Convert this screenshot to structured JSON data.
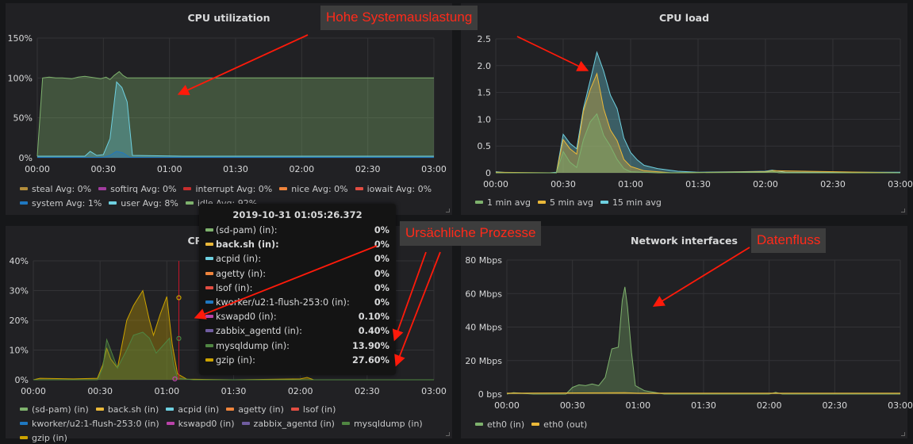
{
  "panels": {
    "cpu_util": {
      "title": "CPU utilization",
      "legend": [
        {
          "label": "steal",
          "avg": "Avg: 0%",
          "color": "#b38d3b"
        },
        {
          "label": "softirq",
          "avg": "Avg: 0%",
          "color": "#a13c9e"
        },
        {
          "label": "interrupt",
          "avg": "Avg: 0%",
          "color": "#c72e2e"
        },
        {
          "label": "nice",
          "avg": "Avg: 0%",
          "color": "#ef843c"
        },
        {
          "label": "iowait",
          "avg": "Avg: 0%",
          "color": "#e24d42"
        },
        {
          "label": "system",
          "avg": "Avg: 1%",
          "color": "#1f78c1"
        },
        {
          "label": "user",
          "avg": "Avg: 8%",
          "color": "#6ed0e0"
        },
        {
          "label": "idle",
          "avg": "Avg: 92%",
          "color": "#7eb26d"
        }
      ]
    },
    "cpu_load": {
      "title": "CPU load",
      "legend": [
        {
          "label": "1 min avg",
          "color": "#7eb26d"
        },
        {
          "label": "5 min avg",
          "color": "#eab839"
        },
        {
          "label": "15 min avg",
          "color": "#6ed0e0"
        }
      ]
    },
    "cpu_proc": {
      "title": "CPU utilization",
      "legend": [
        {
          "label": "(sd-pam) (in)",
          "color": "#7eb26d"
        },
        {
          "label": "back.sh (in)",
          "color": "#eab839"
        },
        {
          "label": "acpid (in)",
          "color": "#6ed0e0"
        },
        {
          "label": "agetty (in)",
          "color": "#ef843c"
        },
        {
          "label": "lsof (in)",
          "color": "#e24d42"
        },
        {
          "label": "kworker/u2:1-flush-253:0 (in)",
          "color": "#1f78c1"
        },
        {
          "label": "kswapd0 (in)",
          "color": "#ba43a9"
        },
        {
          "label": "zabbix_agentd (in)",
          "color": "#705da0"
        },
        {
          "label": "mysqldump (in)",
          "color": "#508642"
        },
        {
          "label": "gzip (in)",
          "color": "#cca300"
        }
      ]
    },
    "network": {
      "title": "Network interfaces",
      "legend": [
        {
          "label": "eth0 (in)",
          "color": "#7eb26d"
        },
        {
          "label": "eth0 (out)",
          "color": "#eab839"
        }
      ]
    }
  },
  "tooltip": {
    "time": "2019-10-31 01:05:26.372",
    "rows": [
      {
        "name": "(sd-pam) (in):",
        "value": "0%",
        "color": "#7eb26d"
      },
      {
        "name": "back.sh (in):",
        "value": "0%",
        "color": "#eab839",
        "bold": true
      },
      {
        "name": "acpid (in):",
        "value": "0%",
        "color": "#6ed0e0"
      },
      {
        "name": "agetty (in):",
        "value": "0%",
        "color": "#ef843c"
      },
      {
        "name": "lsof (in):",
        "value": "0%",
        "color": "#e24d42"
      },
      {
        "name": "kworker/u2:1-flush-253:0 (in):",
        "value": "0%",
        "color": "#1f78c1"
      },
      {
        "name": "kswapd0 (in):",
        "value": "0.10%",
        "color": "#ba43a9"
      },
      {
        "name": "zabbix_agentd (in):",
        "value": "0.40%",
        "color": "#705da0"
      },
      {
        "name": "mysqldump (in):",
        "value": "13.90%",
        "color": "#508642"
      },
      {
        "name": "gzip (in):",
        "value": "27.60%",
        "color": "#cca300"
      }
    ]
  },
  "annotations": {
    "top": "Hohe Systemauslastung",
    "middle": "Ursächliche Prozesse",
    "right": "Datenfluss"
  },
  "chart_data": [
    {
      "type": "area",
      "title": "CPU utilization",
      "x": [
        "00:00",
        "00:30",
        "01:00",
        "01:30",
        "02:00",
        "02:30",
        "03:00"
      ],
      "y_ticks": [
        "0%",
        "50%",
        "100%",
        "150%"
      ],
      "ylim": [
        0,
        150
      ],
      "unit": "%",
      "series": [
        {
          "name": "idle",
          "color": "#7eb26d",
          "points": [
            [
              0,
              2
            ],
            [
              0.04,
              100
            ],
            [
              0.09,
              101
            ],
            [
              0.14,
              100
            ],
            [
              0.19,
              100
            ],
            [
              0.26,
              99
            ],
            [
              0.31,
              101
            ],
            [
              0.36,
              102
            ],
            [
              0.4,
              101
            ],
            [
              0.44,
              100
            ],
            [
              0.48,
              99
            ],
            [
              0.52,
              101
            ],
            [
              0.55,
              98
            ],
            [
              0.58,
              103
            ],
            [
              0.62,
              108
            ],
            [
              0.65,
              103
            ],
            [
              0.68,
              100
            ],
            [
              0.72,
              100
            ],
            [
              1.5,
              100
            ],
            [
              2.2,
              100
            ],
            [
              3,
              100
            ]
          ]
        },
        {
          "name": "user",
          "color": "#6ed0e0",
          "points": [
            [
              0,
              2
            ],
            [
              0.3,
              2
            ],
            [
              0.36,
              2
            ],
            [
              0.4,
              8
            ],
            [
              0.45,
              3
            ],
            [
              0.5,
              4
            ],
            [
              0.55,
              24
            ],
            [
              0.6,
              95
            ],
            [
              0.64,
              88
            ],
            [
              0.68,
              70
            ],
            [
              0.72,
              3
            ],
            [
              1.1,
              2
            ],
            [
              3,
              2
            ]
          ]
        },
        {
          "name": "system",
          "color": "#1f78c1",
          "points": [
            [
              0,
              0.5
            ],
            [
              0.5,
              0.5
            ],
            [
              0.55,
              3
            ],
            [
              0.6,
              8
            ],
            [
              0.65,
              6
            ],
            [
              0.7,
              0.5
            ],
            [
              3,
              0.5
            ]
          ]
        }
      ]
    },
    {
      "type": "area",
      "title": "CPU load",
      "x": [
        "00:00",
        "00:30",
        "01:00",
        "01:30",
        "02:00",
        "02:30",
        "03:00"
      ],
      "y_ticks": [
        "0",
        "0.5",
        "1.0",
        "1.5",
        "2.0",
        "2.5"
      ],
      "ylim": [
        0,
        2.5
      ],
      "series": [
        {
          "name": "15 min avg",
          "color": "#6ed0e0",
          "points": [
            [
              0,
              0.02
            ],
            [
              0.1,
              0
            ],
            [
              0.4,
              0
            ],
            [
              0.45,
              0.01
            ],
            [
              0.5,
              0.72
            ],
            [
              0.55,
              0.55
            ],
            [
              0.6,
              0.45
            ],
            [
              0.65,
              1.2
            ],
            [
              0.7,
              1.72
            ],
            [
              0.75,
              2.25
            ],
            [
              0.8,
              1.9
            ],
            [
              0.85,
              1.45
            ],
            [
              0.9,
              1.2
            ],
            [
              0.95,
              0.65
            ],
            [
              1,
              0.38
            ],
            [
              1.05,
              0.24
            ],
            [
              1.1,
              0.14
            ],
            [
              1.2,
              0.08
            ],
            [
              1.35,
              0.03
            ],
            [
              1.5,
              0.01
            ],
            [
              1.8,
              0.02
            ],
            [
              2,
              0.03
            ],
            [
              2.05,
              0.05
            ],
            [
              2.15,
              0.01
            ],
            [
              2.5,
              0.01
            ],
            [
              3,
              0.01
            ]
          ]
        },
        {
          "name": "5 min avg",
          "color": "#eab839",
          "points": [
            [
              0,
              0.01
            ],
            [
              0.45,
              0
            ],
            [
              0.5,
              0.62
            ],
            [
              0.55,
              0.45
            ],
            [
              0.6,
              0.35
            ],
            [
              0.65,
              1.15
            ],
            [
              0.7,
              1.55
            ],
            [
              0.75,
              1.85
            ],
            [
              0.8,
              1.2
            ],
            [
              0.85,
              0.8
            ],
            [
              0.9,
              0.6
            ],
            [
              0.95,
              0.25
            ],
            [
              1,
              0.12
            ],
            [
              1.1,
              0.04
            ],
            [
              1.3,
              0
            ],
            [
              2,
              0.02
            ],
            [
              2.05,
              0.04
            ],
            [
              3,
              0
            ]
          ]
        },
        {
          "name": "1 min avg",
          "color": "#7eb26d",
          "points": [
            [
              0,
              0
            ],
            [
              0.45,
              0
            ],
            [
              0.5,
              0.4
            ],
            [
              0.55,
              0.2
            ],
            [
              0.6,
              0.1
            ],
            [
              0.65,
              0.62
            ],
            [
              0.7,
              0.95
            ],
            [
              0.75,
              1.1
            ],
            [
              0.8,
              0.7
            ],
            [
              0.85,
              0.5
            ],
            [
              0.9,
              0.25
            ],
            [
              0.95,
              0.08
            ],
            [
              1,
              0.02
            ],
            [
              1.2,
              0
            ],
            [
              2,
              0.01
            ],
            [
              2.05,
              0.03
            ],
            [
              2.1,
              0
            ],
            [
              3,
              0
            ]
          ]
        }
      ]
    },
    {
      "type": "area",
      "title": "CPU utilization",
      "x": [
        "00:00",
        "00:30",
        "01:00",
        "01:30",
        "02:00",
        "02:30",
        "03:00"
      ],
      "y_ticks": [
        "0%",
        "10%",
        "20%",
        "30%",
        "40%"
      ],
      "ylim": [
        0,
        40
      ],
      "unit": "%",
      "series": [
        {
          "name": "gzip (in)",
          "color": "#cca300",
          "points": [
            [
              0,
              0
            ],
            [
              0.05,
              0.5
            ],
            [
              0.3,
              0.3
            ],
            [
              0.48,
              0.5
            ],
            [
              0.52,
              5
            ],
            [
              0.55,
              10.5
            ],
            [
              0.58,
              7
            ],
            [
              0.63,
              4
            ],
            [
              0.7,
              20
            ],
            [
              0.75,
              25
            ],
            [
              0.82,
              30
            ],
            [
              0.87,
              20
            ],
            [
              0.9,
              15
            ],
            [
              0.95,
              22
            ],
            [
              1.0,
              28
            ],
            [
              1.04,
              12
            ],
            [
              1.08,
              2
            ],
            [
              1.15,
              0.2
            ],
            [
              1.5,
              0
            ],
            [
              2,
              0.3
            ],
            [
              2.05,
              0.8
            ],
            [
              2.1,
              0
            ],
            [
              3,
              0
            ]
          ]
        },
        {
          "name": "mysqldump (in)",
          "color": "#508642",
          "points": [
            [
              0,
              0
            ],
            [
              0.48,
              0
            ],
            [
              0.52,
              4
            ],
            [
              0.55,
              13.5
            ],
            [
              0.58,
              10
            ],
            [
              0.63,
              4
            ],
            [
              0.7,
              10
            ],
            [
              0.75,
              15
            ],
            [
              0.82,
              16
            ],
            [
              0.87,
              14
            ],
            [
              0.92,
              9
            ],
            [
              0.98,
              12
            ],
            [
              1.02,
              14
            ],
            [
              1.05,
              5
            ],
            [
              1.08,
              0.5
            ],
            [
              1.2,
              0
            ],
            [
              3,
              0
            ]
          ]
        }
      ]
    },
    {
      "type": "area",
      "title": "Network interfaces",
      "x": [
        "00:00",
        "00:30",
        "01:00",
        "01:30",
        "02:00",
        "02:30",
        "03:00"
      ],
      "y_ticks": [
        "0 bps",
        "20 Mbps",
        "40 Mbps",
        "60 Mbps",
        "80 Mbps"
      ],
      "ylim": [
        0,
        80
      ],
      "series": [
        {
          "name": "eth0 (in)",
          "color": "#7eb26d",
          "points": [
            [
              0,
              0
            ],
            [
              0.05,
              0.8
            ],
            [
              0.2,
              0
            ],
            [
              0.45,
              0
            ],
            [
              0.5,
              4
            ],
            [
              0.55,
              5.5
            ],
            [
              0.6,
              5
            ],
            [
              0.65,
              6
            ],
            [
              0.7,
              5
            ],
            [
              0.75,
              10
            ],
            [
              0.8,
              27
            ],
            [
              0.85,
              28
            ],
            [
              0.88,
              56
            ],
            [
              0.9,
              64
            ],
            [
              0.92,
              52
            ],
            [
              0.95,
              25
            ],
            [
              0.98,
              5
            ],
            [
              1.05,
              2
            ],
            [
              1.2,
              0
            ],
            [
              2,
              0
            ],
            [
              2.05,
              1
            ],
            [
              2.1,
              0
            ],
            [
              3,
              0
            ]
          ]
        },
        {
          "name": "eth0 (out)",
          "color": "#eab839",
          "points": [
            [
              0,
              0.5
            ],
            [
              0.9,
              0.8
            ],
            [
              1,
              0.5
            ],
            [
              3,
              0.5
            ]
          ]
        }
      ]
    }
  ]
}
